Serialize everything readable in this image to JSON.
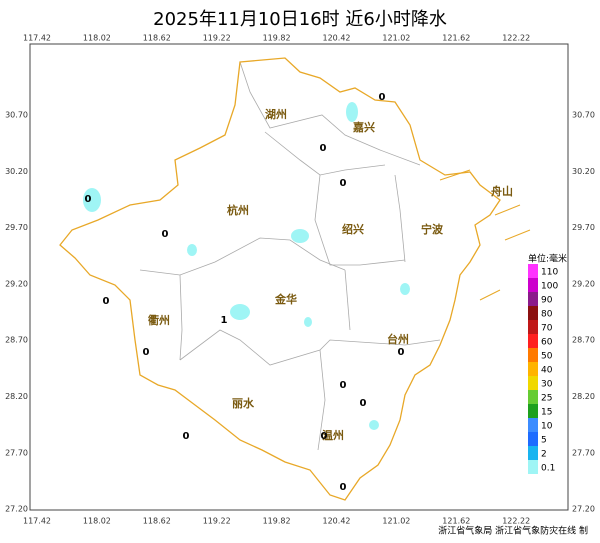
{
  "title": "2025年11月10日16时  近6小时降水",
  "map": {
    "lon_ticks": [
      "117.42",
      "118.02",
      "118.62",
      "119.22",
      "119.82",
      "120.42",
      "121.02",
      "121.62",
      "122.22"
    ],
    "lat_ticks": [
      "30.70",
      "30.20",
      "29.70",
      "29.20",
      "28.70",
      "28.20",
      "27.70",
      "27.20"
    ],
    "cities": [
      "湖州",
      "嘉兴",
      "杭州",
      "绍兴",
      "宁波",
      "舟山",
      "金华",
      "衢州",
      "台州",
      "丽水",
      "温州"
    ],
    "stations": [
      0,
      0,
      0,
      0,
      0,
      0,
      0,
      0,
      0,
      0,
      0,
      0,
      0,
      1
    ]
  },
  "legend": {
    "title": "单位:毫米",
    "items": [
      {
        "label": "110",
        "color": "#ff33ff"
      },
      {
        "label": "100",
        "color": "#cc00cc"
      },
      {
        "label": "90",
        "color": "#8b1a8b"
      },
      {
        "label": "80",
        "color": "#8b1010"
      },
      {
        "label": "70",
        "color": "#c01818"
      },
      {
        "label": "60",
        "color": "#ff2020"
      },
      {
        "label": "50",
        "color": "#ff7a00"
      },
      {
        "label": "40",
        "color": "#ffb400"
      },
      {
        "label": "30",
        "color": "#f0d800"
      },
      {
        "label": "25",
        "color": "#66cc33"
      },
      {
        "label": "15",
        "color": "#1ea01e"
      },
      {
        "label": "10",
        "color": "#3c8cff"
      },
      {
        "label": "5",
        "color": "#1e6cff"
      },
      {
        "label": "2",
        "color": "#19b4f0"
      },
      {
        "label": "0.1",
        "color": "#9ff5f5"
      }
    ]
  },
  "footer": "浙江省气象局 浙江省气象防灾在线 制"
}
